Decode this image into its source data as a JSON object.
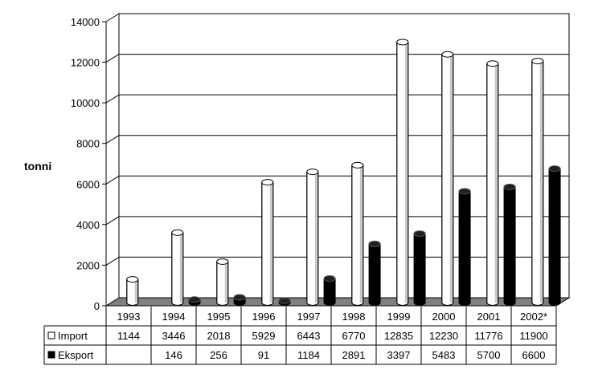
{
  "chart_data": {
    "type": "bar",
    "ylabel": "tonni",
    "ylim": [
      0,
      14000
    ],
    "yticks": [
      0,
      2000,
      4000,
      6000,
      8000,
      10000,
      12000,
      14000
    ],
    "grid": true,
    "style": "3d-cylinder",
    "categories": [
      "1993",
      "1994",
      "1995",
      "1996",
      "1997",
      "1998",
      "1999",
      "2000",
      "2001",
      "2002*"
    ],
    "series": [
      {
        "name": "Import",
        "color": "#ffffff",
        "values": [
          1144,
          3446,
          2018,
          5929,
          6443,
          6770,
          12835,
          12230,
          11776,
          11900
        ],
        "labels": [
          "1144",
          "3446",
          "2018",
          "5929",
          "6443",
          "6770",
          "12835",
          "12230",
          "11776",
          "11900"
        ]
      },
      {
        "name": "Eksport",
        "color": "#000000",
        "values": [
          null,
          146,
          256,
          91,
          1184,
          2891,
          3397,
          5483,
          5700,
          6600
        ],
        "labels": [
          "",
          "146",
          "256",
          "91",
          "1184",
          "2891",
          "3397",
          "5483",
          "5700",
          "6600"
        ]
      }
    ],
    "legend": "data-table"
  }
}
